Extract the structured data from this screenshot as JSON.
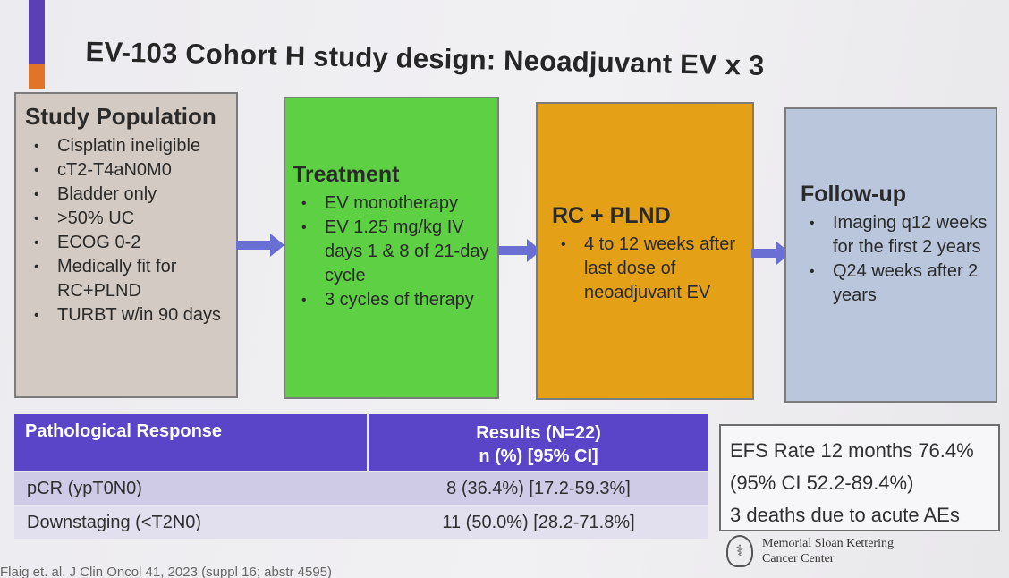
{
  "title": "EV-103 Cohort H study design: Neoadjuvant EV x 3",
  "study_population": {
    "heading": "Study Population",
    "items": [
      "Cisplatin ineligible",
      "cT2-T4aN0M0",
      "Bladder only",
      ">50% UC",
      "ECOG 0-2",
      "Medically fit for RC+PLND",
      "TURBT w/in 90 days"
    ]
  },
  "treatment": {
    "heading": "Treatment",
    "items": [
      "EV monotherapy",
      "EV 1.25 mg/kg IV days 1 & 8 of 21-day cycle",
      "3 cycles of therapy"
    ]
  },
  "rc_plnd": {
    "heading": "RC + PLND",
    "items": [
      "4 to 12 weeks after last dose of neoadjuvant EV"
    ]
  },
  "follow_up": {
    "heading": "Follow-up",
    "items": [
      "Imaging q12 weeks for the first 2 years",
      "Q24 weeks after 2 years"
    ]
  },
  "table": {
    "header": {
      "col1": "Pathological Response",
      "col2_line1": "Results (N=22)",
      "col2_line2": "n (%) [95% CI]"
    },
    "rows": [
      {
        "label": "pCR (ypT0N0)",
        "value": "8 (36.4%) [17.2-59.3%]"
      },
      {
        "label": "Downstaging (<T2N0)",
        "value": "11 (50.0%) [28.2-71.8%]"
      }
    ]
  },
  "efs_box": {
    "line1": "EFS Rate 12 months 76.4%",
    "line2": "(95% CI 52.2-89.4%)",
    "line3": "3 deaths due to acute AEs"
  },
  "logo": {
    "line1": "Memorial Sloan Kettering",
    "line2": "Cancer Center"
  },
  "citation": "Flaig et. al. J Clin Oncol 41, 2023 (suppl 16; abstr 4595)",
  "colors": {
    "study_population": "#d3cbc3",
    "treatment": "#5ed044",
    "rc_plnd": "#e4a118",
    "follow_up": "#b9c6dc",
    "table_header": "#5a44c7",
    "arrow": "#6a6fd4"
  }
}
